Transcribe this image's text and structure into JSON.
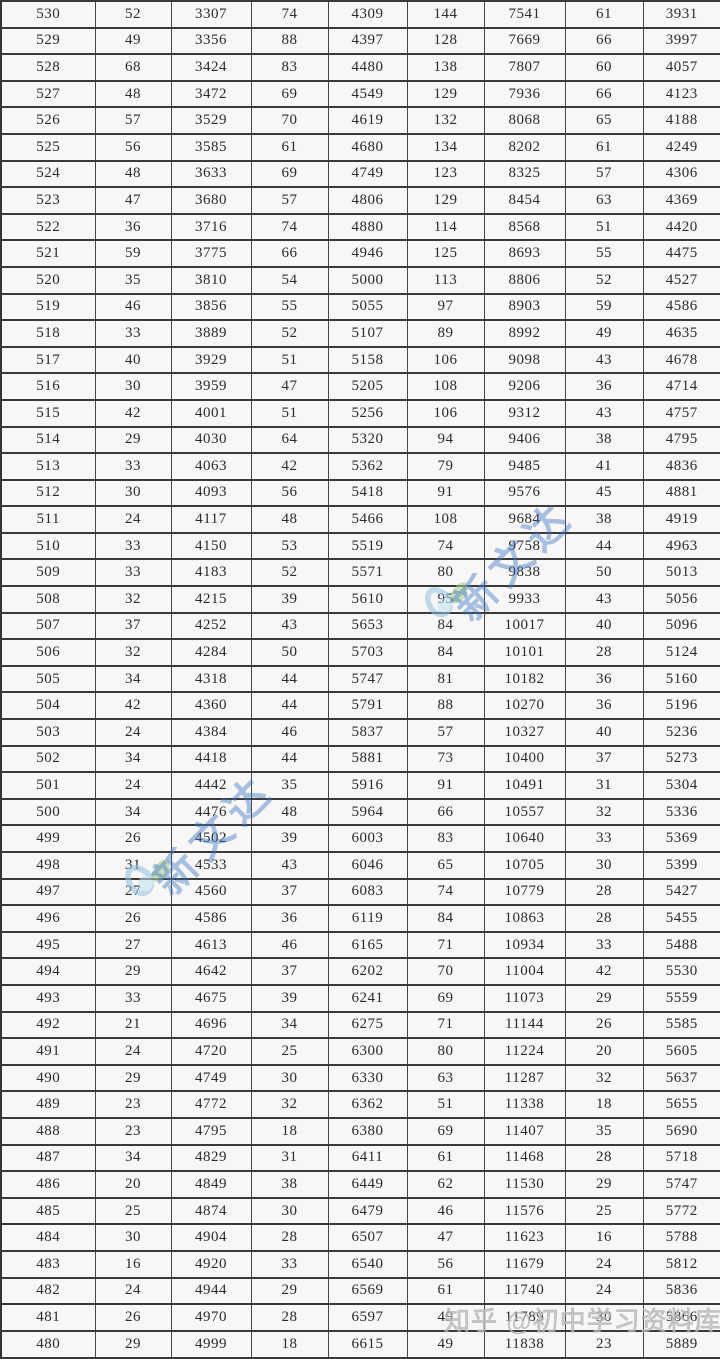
{
  "table": {
    "rows": [
      [
        "530",
        "52",
        "3307",
        "74",
        "4309",
        "144",
        "7541",
        "61",
        "3931"
      ],
      [
        "529",
        "49",
        "3356",
        "88",
        "4397",
        "128",
        "7669",
        "66",
        "3997"
      ],
      [
        "528",
        "68",
        "3424",
        "83",
        "4480",
        "138",
        "7807",
        "60",
        "4057"
      ],
      [
        "527",
        "48",
        "3472",
        "69",
        "4549",
        "129",
        "7936",
        "66",
        "4123"
      ],
      [
        "526",
        "57",
        "3529",
        "70",
        "4619",
        "132",
        "8068",
        "65",
        "4188"
      ],
      [
        "525",
        "56",
        "3585",
        "61",
        "4680",
        "134",
        "8202",
        "61",
        "4249"
      ],
      [
        "524",
        "48",
        "3633",
        "69",
        "4749",
        "123",
        "8325",
        "57",
        "4306"
      ],
      [
        "523",
        "47",
        "3680",
        "57",
        "4806",
        "129",
        "8454",
        "63",
        "4369"
      ],
      [
        "522",
        "36",
        "3716",
        "74",
        "4880",
        "114",
        "8568",
        "51",
        "4420"
      ],
      [
        "521",
        "59",
        "3775",
        "66",
        "4946",
        "125",
        "8693",
        "55",
        "4475"
      ],
      [
        "520",
        "35",
        "3810",
        "54",
        "5000",
        "113",
        "8806",
        "52",
        "4527"
      ],
      [
        "519",
        "46",
        "3856",
        "55",
        "5055",
        "97",
        "8903",
        "59",
        "4586"
      ],
      [
        "518",
        "33",
        "3889",
        "52",
        "5107",
        "89",
        "8992",
        "49",
        "4635"
      ],
      [
        "517",
        "40",
        "3929",
        "51",
        "5158",
        "106",
        "9098",
        "43",
        "4678"
      ],
      [
        "516",
        "30",
        "3959",
        "47",
        "5205",
        "108",
        "9206",
        "36",
        "4714"
      ],
      [
        "515",
        "42",
        "4001",
        "51",
        "5256",
        "106",
        "9312",
        "43",
        "4757"
      ],
      [
        "514",
        "29",
        "4030",
        "64",
        "5320",
        "94",
        "9406",
        "38",
        "4795"
      ],
      [
        "513",
        "33",
        "4063",
        "42",
        "5362",
        "79",
        "9485",
        "41",
        "4836"
      ],
      [
        "512",
        "30",
        "4093",
        "56",
        "5418",
        "91",
        "9576",
        "45",
        "4881"
      ],
      [
        "511",
        "24",
        "4117",
        "48",
        "5466",
        "108",
        "9684",
        "38",
        "4919"
      ],
      [
        "510",
        "33",
        "4150",
        "53",
        "5519",
        "74",
        "9758",
        "44",
        "4963"
      ],
      [
        "509",
        "33",
        "4183",
        "52",
        "5571",
        "80",
        "9838",
        "50",
        "5013"
      ],
      [
        "508",
        "32",
        "4215",
        "39",
        "5610",
        "95",
        "9933",
        "43",
        "5056"
      ],
      [
        "507",
        "37",
        "4252",
        "43",
        "5653",
        "84",
        "10017",
        "40",
        "5096"
      ],
      [
        "506",
        "32",
        "4284",
        "50",
        "5703",
        "84",
        "10101",
        "28",
        "5124"
      ],
      [
        "505",
        "34",
        "4318",
        "44",
        "5747",
        "81",
        "10182",
        "36",
        "5160"
      ],
      [
        "504",
        "42",
        "4360",
        "44",
        "5791",
        "88",
        "10270",
        "36",
        "5196"
      ],
      [
        "503",
        "24",
        "4384",
        "46",
        "5837",
        "57",
        "10327",
        "40",
        "5236"
      ],
      [
        "502",
        "34",
        "4418",
        "44",
        "5881",
        "73",
        "10400",
        "37",
        "5273"
      ],
      [
        "501",
        "24",
        "4442",
        "35",
        "5916",
        "91",
        "10491",
        "31",
        "5304"
      ],
      [
        "500",
        "34",
        "4476",
        "48",
        "5964",
        "66",
        "10557",
        "32",
        "5336"
      ],
      [
        "499",
        "26",
        "4502",
        "39",
        "6003",
        "83",
        "10640",
        "33",
        "5369"
      ],
      [
        "498",
        "31",
        "4533",
        "43",
        "6046",
        "65",
        "10705",
        "30",
        "5399"
      ],
      [
        "497",
        "27",
        "4560",
        "37",
        "6083",
        "74",
        "10779",
        "28",
        "5427"
      ],
      [
        "496",
        "26",
        "4586",
        "36",
        "6119",
        "84",
        "10863",
        "28",
        "5455"
      ],
      [
        "495",
        "27",
        "4613",
        "46",
        "6165",
        "71",
        "10934",
        "33",
        "5488"
      ],
      [
        "494",
        "29",
        "4642",
        "37",
        "6202",
        "70",
        "11004",
        "42",
        "5530"
      ],
      [
        "493",
        "33",
        "4675",
        "39",
        "6241",
        "69",
        "11073",
        "29",
        "5559"
      ],
      [
        "492",
        "21",
        "4696",
        "34",
        "6275",
        "71",
        "11144",
        "26",
        "5585"
      ],
      [
        "491",
        "24",
        "4720",
        "25",
        "6300",
        "80",
        "11224",
        "20",
        "5605"
      ],
      [
        "490",
        "29",
        "4749",
        "30",
        "6330",
        "63",
        "11287",
        "32",
        "5637"
      ],
      [
        "489",
        "23",
        "4772",
        "32",
        "6362",
        "51",
        "11338",
        "18",
        "5655"
      ],
      [
        "488",
        "23",
        "4795",
        "18",
        "6380",
        "69",
        "11407",
        "35",
        "5690"
      ],
      [
        "487",
        "34",
        "4829",
        "31",
        "6411",
        "61",
        "11468",
        "28",
        "5718"
      ],
      [
        "486",
        "20",
        "4849",
        "38",
        "6449",
        "62",
        "11530",
        "29",
        "5747"
      ],
      [
        "485",
        "25",
        "4874",
        "30",
        "6479",
        "46",
        "11576",
        "25",
        "5772"
      ],
      [
        "484",
        "30",
        "4904",
        "28",
        "6507",
        "47",
        "11623",
        "16",
        "5788"
      ],
      [
        "483",
        "16",
        "4920",
        "33",
        "6540",
        "56",
        "11679",
        "24",
        "5812"
      ],
      [
        "482",
        "24",
        "4944",
        "29",
        "6569",
        "61",
        "11740",
        "24",
        "5836"
      ],
      [
        "481",
        "26",
        "4970",
        "28",
        "6597",
        "49",
        "11789",
        "30",
        "5866"
      ],
      [
        "480",
        "29",
        "4999",
        "18",
        "6615",
        "49",
        "11838",
        "23",
        "5889"
      ]
    ]
  },
  "watermarks": {
    "brand_text": "新文达",
    "brand_color": "#3e7acd",
    "credit_text": "知乎 @初中学习资料库",
    "credit_color": "#969696"
  },
  "colors": {
    "border": "#3a3a3a",
    "cell_bg": "#f8f7f5",
    "text": "#2b2b2b"
  }
}
